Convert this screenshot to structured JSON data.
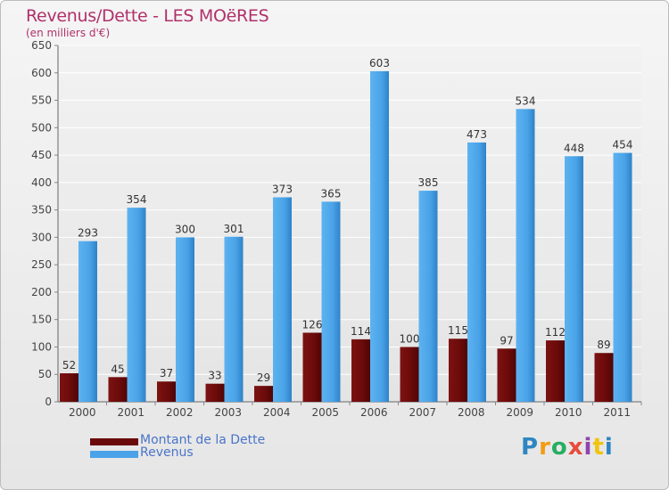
{
  "chart_data": {
    "type": "bar",
    "title": "Revenus/Dette - LES MOëRES",
    "subtitle": "(en milliers d'€)",
    "categories": [
      "2000",
      "2001",
      "2002",
      "2003",
      "2004",
      "2005",
      "2006",
      "2007",
      "2008",
      "2009",
      "2010",
      "2011"
    ],
    "series": [
      {
        "name": "Montant de la Dette",
        "color": "#6b0a0a",
        "values": [
          52,
          45,
          37,
          33,
          29,
          126,
          114,
          100,
          115,
          97,
          112,
          89
        ]
      },
      {
        "name": "Revenus",
        "color": "#4aa3e8",
        "values": [
          293,
          354,
          300,
          301,
          373,
          365,
          603,
          385,
          473,
          534,
          448,
          454
        ]
      }
    ],
    "ylim": [
      0,
      650
    ],
    "yticks": [
      0,
      50,
      100,
      150,
      200,
      250,
      300,
      350,
      400,
      450,
      500,
      550,
      600,
      650
    ],
    "grid": true,
    "legend": "bottom-left"
  },
  "brand": {
    "letters": [
      "P",
      "r",
      "o",
      "x",
      "i",
      "t",
      "i"
    ]
  }
}
